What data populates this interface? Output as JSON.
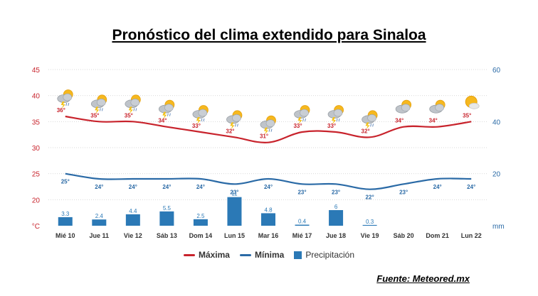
{
  "header": {
    "title": "Pronóstico del clima extendido para Sinaloa"
  },
  "footer": {
    "source": "Fuente: Meteored.mx"
  },
  "colors": {
    "max": "#c8232c",
    "min": "#2a6aa6",
    "precip": "#2b79b6",
    "left_axis": "#c8232c",
    "right_axis": "#2a6aa6",
    "grid": "#d9d9d9"
  },
  "chart_data": {
    "type": "line",
    "title": "Pronóstico del clima extendido para Sinaloa",
    "categories": [
      "Mié 10",
      "Jue 11",
      "Vie 12",
      "Sáb 13",
      "Dom 14",
      "Lun 15",
      "Mar 16",
      "Mié 17",
      "Jue 18",
      "Vie 19",
      "Sáb 20",
      "Dom 21",
      "Lun 22"
    ],
    "series": [
      {
        "name": "Máxima",
        "type": "line",
        "axis": "left",
        "values": [
          36,
          35,
          35,
          34,
          33,
          32,
          31,
          33,
          33,
          32,
          34,
          34,
          35
        ],
        "labels": [
          "36°",
          "35°",
          "35°",
          "34°",
          "33°",
          "32°",
          "31°",
          "33°",
          "33°",
          "32°",
          "34°",
          "34°",
          "35°"
        ]
      },
      {
        "name": "Mínima",
        "type": "line",
        "axis": "left",
        "values": [
          25,
          24,
          24,
          24,
          24,
          23,
          24,
          23,
          23,
          22,
          23,
          24,
          24
        ],
        "labels": [
          "25°",
          "24°",
          "24°",
          "24°",
          "24°",
          "23°",
          "24°",
          "23°",
          "23°",
          "22°",
          "23°",
          "24°",
          "24°"
        ]
      },
      {
        "name": "Precipitación",
        "type": "bar",
        "axis": "right",
        "values": [
          3.3,
          2.4,
          4.4,
          5.5,
          2.5,
          11,
          4.8,
          0.4,
          6,
          0.3,
          0,
          0,
          0
        ],
        "labels": [
          "3.3",
          "2.4",
          "4.4",
          "5.5",
          "2.5",
          "11",
          "4.8",
          "0.4",
          "6",
          "0.3",
          "",
          "",
          ""
        ]
      }
    ],
    "y_left": {
      "unit": "°C",
      "ticks": [
        "45",
        "40",
        "35",
        "30",
        "25",
        "20"
      ],
      "ylim": [
        15,
        45
      ]
    },
    "y_right": {
      "unit": "mm",
      "ticks": [
        "60",
        "40",
        "20"
      ],
      "ylim": [
        0,
        60
      ]
    },
    "icons": [
      "storm-sun-icon",
      "storm-sun-icon",
      "storm-sun-icon",
      "storm-sun-icon",
      "storm-sun-icon",
      "storm-sun-icon",
      "storm-sun-icon",
      "storm-sun-icon",
      "storm-sun-icon",
      "storm-sun-icon",
      "cloud-sun-icon",
      "cloud-sun-icon",
      "sun-cloud-icon"
    ],
    "grid": true,
    "legend": "bottom-center"
  }
}
